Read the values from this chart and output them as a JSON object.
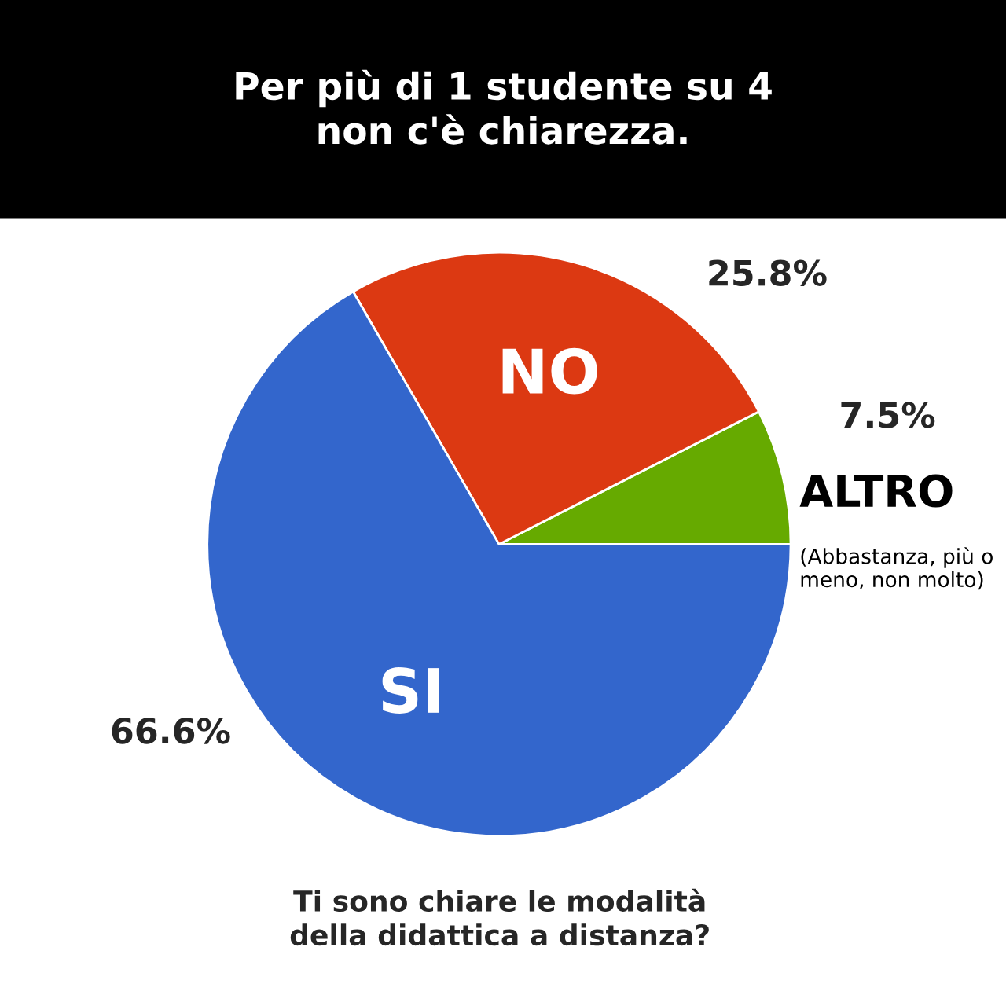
{
  "chart_data": {
    "type": "pie",
    "title": "Per più di 1 studente su 4\nnon c'è chiarezza.",
    "categories": [
      "ALTRO",
      "NO",
      "SI"
    ],
    "values": [
      7.5,
      25.8,
      66.6
    ],
    "colors": [
      "#66aa00",
      "#dc3912",
      "#3366cc"
    ],
    "value_labels": [
      "7.5%",
      "25.8%",
      "66.6%"
    ],
    "annotations": [
      "(Abbastanza, più o meno, non molto)",
      "Ti sono chiare le modalità\ndella didattica a distanza?"
    ]
  }
}
